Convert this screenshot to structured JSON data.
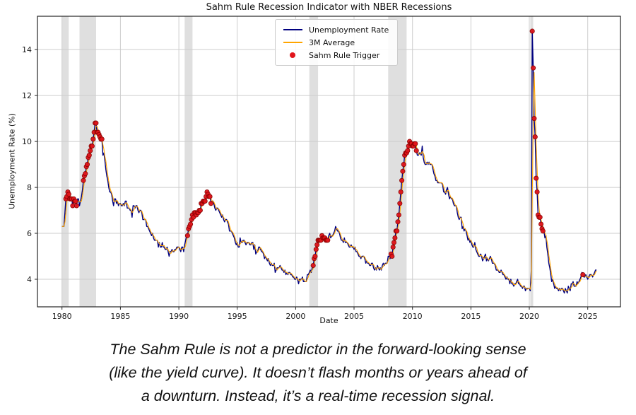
{
  "figure": {
    "title": "Sahm Rule Recession Indicator with NBER Recessions",
    "xlabel": "Date",
    "ylabel": "Unemployment Rate (%)",
    "legend": [
      {
        "label": "Unemployment Rate",
        "type": "line",
        "color": "#000080"
      },
      {
        "label": "3M Average",
        "type": "line",
        "color": "#FFA500"
      },
      {
        "label": "Sahm Rule Trigger",
        "type": "dot",
        "color": "#e1151b"
      }
    ]
  },
  "caption": {
    "line1": "The Sahm Rule is not a predictor in the forward-looking sense",
    "line2": "(like the yield curve). It doesn’t flash months or years ahead of",
    "line3": "a downturn. Instead, it’s a real-time recession signal."
  },
  "chart_data": {
    "type": "line",
    "title": "Sahm Rule Recession Indicator with NBER Recessions",
    "xlabel": "Date",
    "ylabel": "Unemployment Rate (%)",
    "x_ticks": [
      1980,
      1985,
      1990,
      1995,
      2000,
      2005,
      2010,
      2015,
      2020,
      2025
    ],
    "y_ticks": [
      4,
      6,
      8,
      10,
      12,
      14
    ],
    "xlim": [
      1977.9,
      2027.8
    ],
    "ylim": [
      2.8,
      15.45
    ],
    "grid": true,
    "legend_position": "upper center",
    "x_start_year": 1980,
    "x_start_month": 1,
    "x_frequency": "monthly",
    "trigger_rule": "3-month average minus minimum of prior 12 months of 3-month average exceeds threshold",
    "trigger_threshold": 0.55,
    "colors": {
      "recession_band": "#c9c9c9",
      "grid": "#cdcdcd",
      "frame": "#262626"
    },
    "recession_bands": [
      [
        1980.0,
        1980.58
      ],
      [
        1981.5,
        1982.92
      ],
      [
        1990.5,
        1991.17
      ],
      [
        2001.17,
        2001.92
      ],
      [
        2007.92,
        2009.5
      ],
      [
        2020.08,
        2020.33
      ]
    ],
    "series": [
      {
        "name": "Unemployment Rate",
        "color": "#000080",
        "values": [
          6.3,
          6.3,
          6.3,
          6.9,
          7.5,
          7.6,
          7.8,
          7.7,
          7.5,
          7.5,
          7.5,
          7.2,
          7.5,
          7.4,
          7.4,
          7.2,
          7.5,
          7.5,
          7.2,
          7.4,
          7.6,
          7.9,
          8.3,
          8.5,
          8.6,
          8.9,
          9.0,
          9.3,
          9.4,
          9.6,
          9.8,
          9.8,
          10.1,
          10.4,
          10.8,
          10.8,
          10.4,
          10.4,
          10.3,
          10.2,
          10.1,
          10.1,
          9.4,
          9.5,
          9.2,
          8.8,
          8.5,
          8.3,
          8.0,
          7.8,
          7.8,
          7.7,
          7.4,
          7.2,
          7.5,
          7.5,
          7.3,
          7.4,
          7.2,
          7.3,
          7.3,
          7.2,
          7.2,
          7.3,
          7.2,
          7.4,
          7.4,
          7.1,
          7.1,
          7.1,
          7.0,
          7.0,
          6.7,
          7.2,
          7.2,
          7.1,
          7.2,
          7.2,
          7.0,
          6.9,
          7.0,
          7.0,
          6.9,
          6.6,
          6.6,
          6.6,
          6.6,
          6.3,
          6.3,
          6.2,
          6.1,
          6.0,
          5.9,
          6.0,
          5.8,
          5.7,
          5.7,
          5.7,
          5.7,
          5.4,
          5.6,
          5.4,
          5.4,
          5.6,
          5.4,
          5.4,
          5.3,
          5.3,
          5.4,
          5.2,
          5.0,
          5.2,
          5.2,
          5.3,
          5.2,
          5.2,
          5.3,
          5.3,
          5.4,
          5.4,
          5.4,
          5.3,
          5.2,
          5.4,
          5.4,
          5.2,
          5.5,
          5.7,
          5.9,
          5.9,
          6.2,
          6.3,
          6.4,
          6.6,
          6.8,
          6.7,
          6.9,
          6.9,
          6.8,
          6.9,
          6.9,
          7.0,
          7.0,
          7.3,
          7.3,
          7.4,
          7.4,
          7.4,
          7.6,
          7.8,
          7.7,
          7.6,
          7.6,
          7.3,
          7.4,
          7.4,
          7.3,
          7.1,
          7.0,
          7.1,
          7.1,
          7.0,
          6.9,
          6.8,
          6.7,
          6.8,
          6.6,
          6.5,
          6.6,
          6.6,
          6.5,
          6.4,
          6.1,
          6.1,
          6.1,
          6.0,
          5.9,
          5.8,
          5.6,
          5.5,
          5.6,
          5.4,
          5.4,
          5.8,
          5.6,
          5.6,
          5.7,
          5.7,
          5.6,
          5.5,
          5.6,
          5.6,
          5.6,
          5.5,
          5.5,
          5.6,
          5.6,
          5.3,
          5.5,
          5.1,
          5.2,
          5.2,
          5.4,
          5.4,
          5.3,
          5.2,
          5.2,
          5.1,
          4.9,
          5.0,
          4.9,
          4.8,
          4.9,
          4.7,
          4.6,
          4.7,
          4.6,
          4.6,
          4.7,
          4.3,
          4.4,
          4.5,
          4.5,
          4.5,
          4.6,
          4.5,
          4.4,
          4.4,
          4.3,
          4.4,
          4.2,
          4.3,
          4.2,
          4.3,
          4.3,
          4.2,
          4.2,
          4.1,
          4.1,
          4.0,
          4.0,
          4.1,
          4.0,
          3.8,
          4.0,
          4.0,
          4.0,
          4.1,
          3.9,
          3.9,
          3.9,
          3.9,
          4.2,
          4.2,
          4.3,
          4.4,
          4.3,
          4.5,
          4.6,
          4.9,
          5.0,
          5.3,
          5.5,
          5.7,
          5.7,
          5.7,
          5.7,
          5.9,
          5.8,
          5.8,
          5.8,
          5.7,
          5.7,
          5.7,
          5.9,
          6.0,
          5.8,
          5.9,
          5.9,
          6.0,
          6.1,
          6.3,
          6.2,
          6.1,
          6.1,
          6.0,
          5.8,
          5.7,
          5.7,
          5.6,
          5.8,
          5.6,
          5.6,
          5.6,
          5.5,
          5.4,
          5.4,
          5.5,
          5.4,
          5.4,
          5.3,
          5.4,
          5.2,
          5.2,
          5.1,
          5.0,
          5.0,
          4.9,
          5.0,
          5.0,
          5.0,
          4.9,
          4.7,
          4.8,
          4.7,
          4.7,
          4.6,
          4.6,
          4.7,
          4.7,
          4.5,
          4.4,
          4.5,
          4.4,
          4.6,
          4.5,
          4.4,
          4.5,
          4.4,
          4.6,
          4.7,
          4.6,
          4.7,
          4.7,
          4.7,
          5.0,
          5.0,
          4.9,
          5.1,
          5.0,
          5.4,
          5.6,
          5.8,
          6.1,
          6.1,
          6.5,
          6.8,
          7.3,
          7.8,
          8.3,
          8.7,
          9.0,
          9.4,
          9.5,
          9.5,
          9.6,
          9.8,
          10.0,
          9.9,
          9.9,
          9.8,
          9.8,
          9.9,
          9.9,
          9.6,
          9.4,
          9.4,
          9.5,
          9.5,
          9.4,
          9.8,
          9.3,
          9.1,
          9.0,
          9.0,
          9.1,
          9.0,
          9.1,
          9.0,
          9.0,
          9.0,
          8.8,
          8.6,
          8.5,
          8.3,
          8.3,
          8.2,
          8.2,
          8.2,
          8.2,
          8.2,
          8.1,
          7.8,
          7.8,
          7.7,
          7.9,
          8.0,
          7.7,
          7.5,
          7.6,
          7.5,
          7.5,
          7.3,
          7.2,
          7.2,
          7.2,
          6.9,
          6.7,
          6.6,
          6.7,
          6.7,
          6.2,
          6.3,
          6.1,
          6.2,
          6.1,
          5.9,
          5.7,
          5.8,
          5.6,
          5.7,
          5.5,
          5.4,
          5.4,
          5.6,
          5.3,
          5.2,
          5.1,
          5.0,
          5.0,
          5.1,
          5.0,
          4.8,
          4.9,
          5.0,
          5.1,
          4.8,
          4.9,
          4.8,
          4.9,
          5.0,
          4.9,
          4.7,
          4.7,
          4.7,
          4.6,
          4.4,
          4.4,
          4.4,
          4.3,
          4.3,
          4.4,
          4.3,
          4.2,
          4.2,
          4.1,
          4.0,
          4.1,
          4.0,
          4.0,
          3.8,
          4.0,
          3.8,
          3.8,
          3.7,
          3.8,
          3.8,
          3.9,
          4.0,
          3.8,
          3.8,
          3.7,
          3.7,
          3.6,
          3.7,
          3.7,
          3.5,
          3.6,
          3.6,
          3.6,
          3.6,
          3.5,
          4.4,
          14.8,
          13.2,
          11.0,
          10.2,
          8.4,
          7.8,
          6.8,
          6.7,
          6.7,
          6.4,
          6.2,
          6.1,
          6.1,
          5.8,
          5.9,
          5.4,
          5.1,
          4.7,
          4.5,
          4.2,
          3.9,
          4.0,
          3.8,
          3.6,
          3.7,
          3.6,
          3.6,
          3.5,
          3.6,
          3.5,
          3.6,
          3.6,
          3.5,
          3.4,
          3.6,
          3.5,
          3.4,
          3.7,
          3.6,
          3.5,
          3.8,
          3.8,
          3.9,
          3.7,
          3.7,
          3.7,
          3.9,
          3.8,
          3.9,
          4.0,
          4.1,
          4.3,
          4.2,
          4.1,
          4.1,
          4.2,
          4.1,
          4.0,
          4.1,
          4.2,
          4.2,
          4.2,
          4.1,
          4.2,
          4.3,
          4.4,
          4.4
        ]
      },
      {
        "name": "3M Average",
        "color": "#FFA500",
        "derived_from": "3-month moving average of Unemployment Rate"
      },
      {
        "name": "Sahm Rule Trigger",
        "color": "#e1151b",
        "edge_color": "#8b0000",
        "derived_from": "months where the Sahm rule condition is met, plotted at the Unemployment Rate value"
      }
    ]
  }
}
